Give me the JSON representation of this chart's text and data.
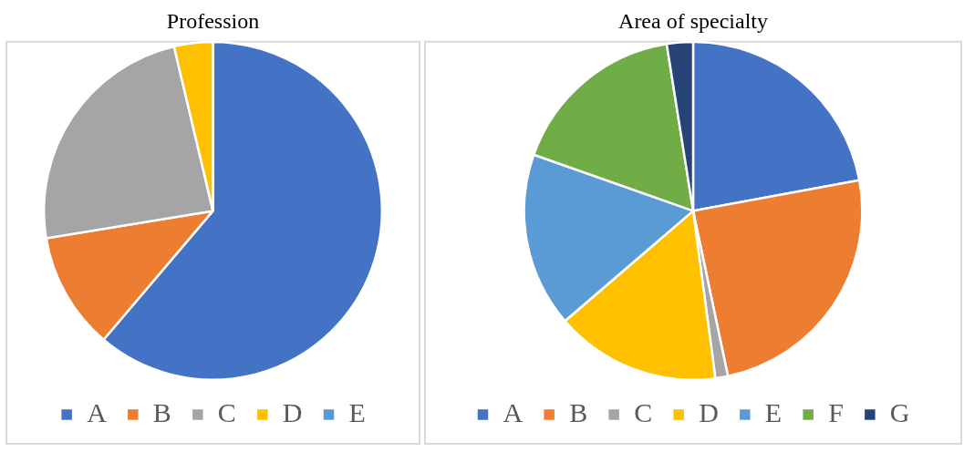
{
  "chart_data": [
    {
      "type": "pie",
      "title": "Profession",
      "categories": [
        "A",
        "B",
        "C",
        "D",
        "E"
      ],
      "values": [
        61.2,
        11.2,
        23.9,
        3.7,
        0
      ],
      "colors": [
        "#4472c4",
        "#ed7d31",
        "#a5a5a5",
        "#ffc000",
        "#5b9bd5"
      ],
      "legend": "bottom"
    },
    {
      "type": "pie",
      "title": "Area of specialty",
      "categories": [
        "A",
        "B",
        "C",
        "D",
        "E",
        "F",
        "G"
      ],
      "values": [
        22.1,
        24.6,
        1.2,
        15.8,
        16.7,
        17.1,
        2.5
      ],
      "colors": [
        "#4472c4",
        "#ed7d31",
        "#a5a5a5",
        "#ffc000",
        "#5b9bd5",
        "#70ad47",
        "#264478"
      ],
      "legend": "bottom"
    }
  ]
}
